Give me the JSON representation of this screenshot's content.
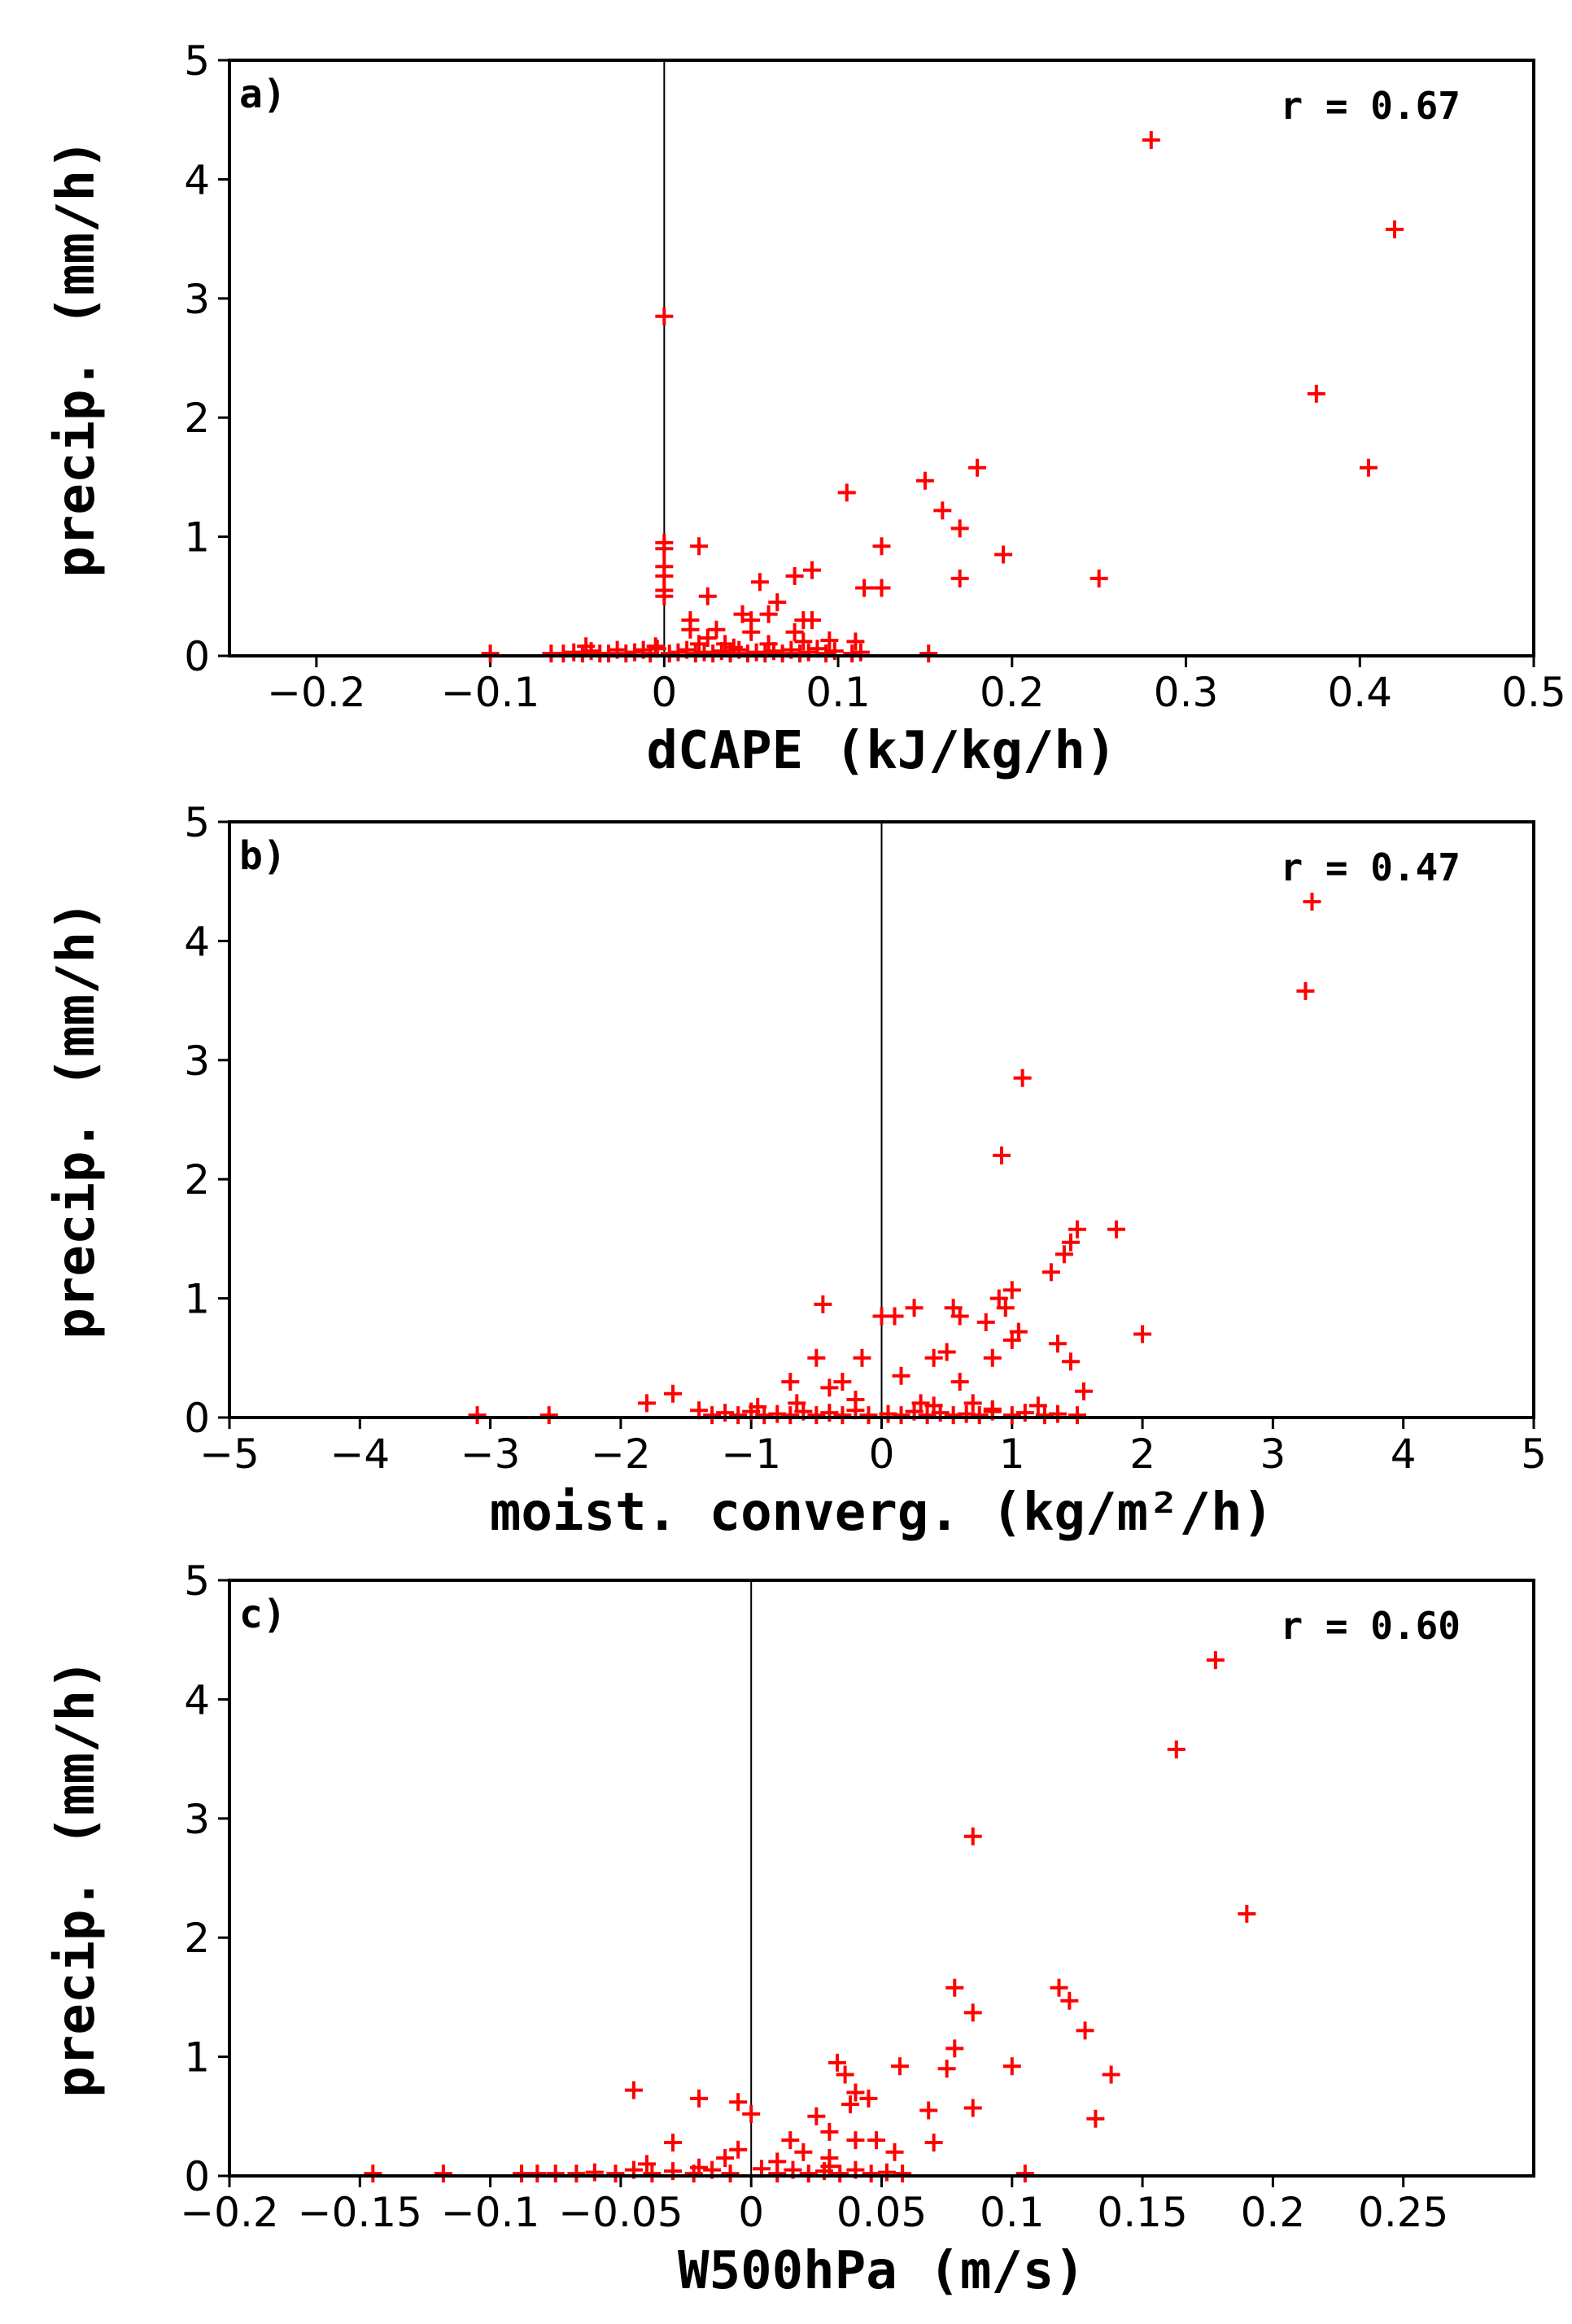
{
  "chart_data": [
    {
      "type": "scatter",
      "panel_label": "a)",
      "annotation": "r = 0.67",
      "xlabel": "dCAPE (kJ/kg/h)",
      "ylabel": "precip. (mm/h)",
      "xlim": [
        -0.25,
        0.5
      ],
      "ylim": [
        0,
        5
      ],
      "xticks": [
        -0.2,
        -0.1,
        0,
        0.1,
        0.2,
        0.3,
        0.4,
        0.5
      ],
      "xtick_labels": [
        "−0.2",
        "−0.1",
        "0",
        "0.1",
        "0.2",
        "0.3",
        "0.4",
        "0.5"
      ],
      "yticks": [
        0,
        1,
        2,
        3,
        4,
        5
      ],
      "ytick_labels": [
        "0",
        "1",
        "2",
        "3",
        "4",
        "5"
      ],
      "zero_line_x": 0,
      "marker_color": "#ff0000",
      "marker": "plus",
      "points": [
        [
          0.28,
          4.33
        ],
        [
          0.42,
          3.58
        ],
        [
          0.375,
          2.2
        ],
        [
          0.405,
          1.58
        ],
        [
          0.0,
          2.85
        ],
        [
          0.18,
          1.58
        ],
        [
          0.15,
          1.47
        ],
        [
          0.105,
          1.37
        ],
        [
          0.16,
          1.22
        ],
        [
          0.17,
          1.07
        ],
        [
          0.125,
          0.92
        ],
        [
          0.195,
          0.85
        ],
        [
          0.02,
          0.92
        ],
        [
          0.0,
          0.95
        ],
        [
          0.0,
          0.9
        ],
        [
          0.0,
          0.75
        ],
        [
          0.0,
          0.67
        ],
        [
          0.0,
          0.55
        ],
        [
          0.0,
          0.5
        ],
        [
          0.085,
          0.72
        ],
        [
          0.075,
          0.67
        ],
        [
          0.055,
          0.62
        ],
        [
          0.115,
          0.57
        ],
        [
          0.125,
          0.57
        ],
        [
          0.17,
          0.65
        ],
        [
          0.25,
          0.65
        ],
        [
          0.025,
          0.5
        ],
        [
          0.065,
          0.45
        ],
        [
          0.06,
          0.35
        ],
        [
          0.045,
          0.35
        ],
        [
          0.05,
          0.3
        ],
        [
          0.08,
          0.3
        ],
        [
          0.085,
          0.3
        ],
        [
          0.015,
          0.3
        ],
        [
          0.015,
          0.22
        ],
        [
          0.03,
          0.22
        ],
        [
          0.05,
          0.2
        ],
        [
          0.075,
          0.2
        ],
        [
          0.025,
          0.15
        ],
        [
          0.095,
          0.13
        ],
        [
          0.11,
          0.12
        ],
        [
          0.08,
          0.12
        ],
        [
          0.06,
          0.1
        ],
        [
          0.035,
          0.1
        ],
        [
          -0.005,
          0.08
        ],
        [
          -0.1,
          0.02
        ],
        [
          -0.065,
          0.02
        ],
        [
          -0.058,
          0.02
        ],
        [
          -0.052,
          0.03
        ],
        [
          -0.047,
          0.02
        ],
        [
          -0.042,
          0.04
        ],
        [
          -0.037,
          0.02
        ],
        [
          -0.032,
          0.02
        ],
        [
          -0.027,
          0.05
        ],
        [
          -0.022,
          0.02
        ],
        [
          -0.017,
          0.03
        ],
        [
          -0.012,
          0.05
        ],
        [
          -0.008,
          0.02
        ],
        [
          -0.004,
          0.06
        ],
        [
          0.003,
          0.02
        ],
        [
          0.008,
          0.03
        ],
        [
          0.013,
          0.05
        ],
        [
          0.018,
          0.02
        ],
        [
          0.023,
          0.03
        ],
        [
          0.028,
          0.02
        ],
        [
          0.033,
          0.04
        ],
        [
          0.038,
          0.02
        ],
        [
          0.043,
          0.05
        ],
        [
          0.048,
          0.02
        ],
        [
          0.053,
          0.03
        ],
        [
          0.058,
          0.02
        ],
        [
          0.063,
          0.04
        ],
        [
          0.068,
          0.02
        ],
        [
          0.073,
          0.05
        ],
        [
          0.078,
          0.02
        ],
        [
          0.083,
          0.03
        ],
        [
          0.088,
          0.06
        ],
        [
          0.093,
          0.02
        ],
        [
          0.098,
          0.04
        ],
        [
          0.108,
          0.02
        ],
        [
          0.113,
          0.03
        ],
        [
          0.152,
          0.02
        ],
        [
          -0.045,
          0.08
        ],
        [
          0.02,
          0.1
        ],
        [
          0.04,
          0.07
        ]
      ]
    },
    {
      "type": "scatter",
      "panel_label": "b)",
      "annotation": "r = 0.47",
      "xlabel": "moist. converg. (kg/m²/h)",
      "ylabel": "precip. (mm/h)",
      "xlim": [
        -5,
        5
      ],
      "ylim": [
        0,
        5
      ],
      "xticks": [
        -5,
        -4,
        -3,
        -2,
        -1,
        0,
        1,
        2,
        3,
        4,
        5
      ],
      "xtick_labels": [
        "−5",
        "−4",
        "−3",
        "−2",
        "−1",
        "0",
        "1",
        "2",
        "3",
        "4",
        "5"
      ],
      "yticks": [
        0,
        1,
        2,
        3,
        4,
        5
      ],
      "ytick_labels": [
        "0",
        "1",
        "2",
        "3",
        "4",
        "5"
      ],
      "zero_line_x": 0,
      "marker_color": "#ff0000",
      "marker": "plus",
      "points": [
        [
          3.3,
          4.33
        ],
        [
          3.25,
          3.58
        ],
        [
          1.08,
          2.85
        ],
        [
          0.92,
          2.2
        ],
        [
          1.5,
          1.58
        ],
        [
          1.8,
          1.58
        ],
        [
          1.45,
          1.47
        ],
        [
          1.4,
          1.37
        ],
        [
          1.3,
          1.22
        ],
        [
          1.0,
          1.07
        ],
        [
          0.9,
          1.0
        ],
        [
          0.95,
          0.92
        ],
        [
          0.55,
          0.92
        ],
        [
          0.25,
          0.92
        ],
        [
          -0.45,
          0.95
        ],
        [
          0.0,
          0.85
        ],
        [
          0.1,
          0.85
        ],
        [
          0.6,
          0.85
        ],
        [
          0.8,
          0.8
        ],
        [
          1.05,
          0.72
        ],
        [
          1.0,
          0.65
        ],
        [
          1.35,
          0.62
        ],
        [
          2.0,
          0.7
        ],
        [
          0.5,
          0.55
        ],
        [
          -0.5,
          0.5
        ],
        [
          -0.15,
          0.5
        ],
        [
          0.4,
          0.5
        ],
        [
          0.85,
          0.5
        ],
        [
          1.45,
          0.47
        ],
        [
          0.15,
          0.35
        ],
        [
          -0.3,
          0.3
        ],
        [
          0.6,
          0.3
        ],
        [
          1.55,
          0.22
        ],
        [
          -0.7,
          0.3
        ],
        [
          -0.4,
          0.25
        ],
        [
          -1.6,
          0.2
        ],
        [
          -1.8,
          0.12
        ],
        [
          -0.65,
          0.12
        ],
        [
          -0.2,
          0.15
        ],
        [
          0.3,
          0.12
        ],
        [
          0.7,
          0.12
        ],
        [
          1.2,
          0.1
        ],
        [
          -3.1,
          0.02
        ],
        [
          -2.55,
          0.02
        ],
        [
          -1.4,
          0.06
        ],
        [
          -1.3,
          0.02
        ],
        [
          -1.2,
          0.04
        ],
        [
          -1.1,
          0.02
        ],
        [
          -1.0,
          0.05
        ],
        [
          -0.9,
          0.02
        ],
        [
          -0.8,
          0.03
        ],
        [
          -0.7,
          0.02
        ],
        [
          -0.6,
          0.05
        ],
        [
          -0.5,
          0.02
        ],
        [
          -0.4,
          0.04
        ],
        [
          -0.3,
          0.02
        ],
        [
          -0.2,
          0.06
        ],
        [
          -0.1,
          0.02
        ],
        [
          0.05,
          0.03
        ],
        [
          0.15,
          0.02
        ],
        [
          0.25,
          0.05
        ],
        [
          0.35,
          0.02
        ],
        [
          0.45,
          0.04
        ],
        [
          0.55,
          0.02
        ],
        [
          0.65,
          0.03
        ],
        [
          0.75,
          0.02
        ],
        [
          0.85,
          0.05
        ],
        [
          1.0,
          0.02
        ],
        [
          1.1,
          0.04
        ],
        [
          1.25,
          0.02
        ],
        [
          1.35,
          0.03
        ],
        [
          1.5,
          0.02
        ],
        [
          -0.95,
          0.09
        ],
        [
          0.4,
          0.1
        ],
        [
          0.85,
          0.07
        ]
      ]
    },
    {
      "type": "scatter",
      "panel_label": "c)",
      "annotation": "r = 0.60",
      "xlabel": "W500hPa (m/s)",
      "ylabel": "precip. (mm/h)",
      "xlim": [
        -0.2,
        0.3
      ],
      "ylim": [
        0,
        5
      ],
      "xticks": [
        -0.2,
        -0.15,
        -0.1,
        -0.05,
        0,
        0.05,
        0.1,
        0.15,
        0.2,
        0.25
      ],
      "xtick_labels": [
        "−0.2",
        "−0.15",
        "−0.1",
        "−0.05",
        "0",
        "0.05",
        "0.1",
        "0.15",
        "0.2",
        "0.25"
      ],
      "yticks": [
        0,
        1,
        2,
        3,
        4,
        5
      ],
      "ytick_labels": [
        "0",
        "1",
        "2",
        "3",
        "4",
        "5"
      ],
      "zero_line_x": 0,
      "marker_color": "#ff0000",
      "marker": "plus",
      "points": [
        [
          0.178,
          4.33
        ],
        [
          0.163,
          3.58
        ],
        [
          0.085,
          2.85
        ],
        [
          0.19,
          2.2
        ],
        [
          0.078,
          1.58
        ],
        [
          0.118,
          1.58
        ],
        [
          0.122,
          1.47
        ],
        [
          0.085,
          1.37
        ],
        [
          0.128,
          1.22
        ],
        [
          0.078,
          1.07
        ],
        [
          0.033,
          0.95
        ],
        [
          0.057,
          0.92
        ],
        [
          0.1,
          0.92
        ],
        [
          0.075,
          0.9
        ],
        [
          0.138,
          0.85
        ],
        [
          0.036,
          0.85
        ],
        [
          -0.045,
          0.72
        ],
        [
          0.04,
          0.7
        ],
        [
          -0.02,
          0.65
        ],
        [
          -0.005,
          0.62
        ],
        [
          0.045,
          0.65
        ],
        [
          0.038,
          0.6
        ],
        [
          0.085,
          0.57
        ],
        [
          0.068,
          0.55
        ],
        [
          0.0,
          0.52
        ],
        [
          0.025,
          0.5
        ],
        [
          0.132,
          0.48
        ],
        [
          0.03,
          0.37
        ],
        [
          0.04,
          0.3
        ],
        [
          0.015,
          0.3
        ],
        [
          -0.03,
          0.28
        ],
        [
          0.07,
          0.28
        ],
        [
          0.048,
          0.3
        ],
        [
          -0.005,
          0.22
        ],
        [
          0.02,
          0.2
        ],
        [
          0.055,
          0.2
        ],
        [
          -0.01,
          0.15
        ],
        [
          0.03,
          0.15
        ],
        [
          -0.145,
          0.02
        ],
        [
          -0.118,
          0.02
        ],
        [
          -0.088,
          0.02
        ],
        [
          -0.082,
          0.02
        ],
        [
          -0.075,
          0.02
        ],
        [
          -0.067,
          0.02
        ],
        [
          -0.06,
          0.03
        ],
        [
          -0.052,
          0.02
        ],
        [
          -0.045,
          0.05
        ],
        [
          -0.038,
          0.02
        ],
        [
          -0.03,
          0.04
        ],
        [
          -0.022,
          0.02
        ],
        [
          -0.015,
          0.05
        ],
        [
          -0.008,
          0.02
        ],
        [
          0.004,
          0.06
        ],
        [
          0.01,
          0.02
        ],
        [
          0.016,
          0.05
        ],
        [
          0.022,
          0.02
        ],
        [
          0.028,
          0.04
        ],
        [
          0.034,
          0.02
        ],
        [
          0.04,
          0.05
        ],
        [
          0.046,
          0.02
        ],
        [
          0.052,
          0.03
        ],
        [
          0.058,
          0.02
        ],
        [
          0.105,
          0.02
        ],
        [
          -0.04,
          0.1
        ],
        [
          0.01,
          0.12
        ],
        [
          0.03,
          0.08
        ],
        [
          -0.02,
          0.07
        ]
      ]
    }
  ]
}
